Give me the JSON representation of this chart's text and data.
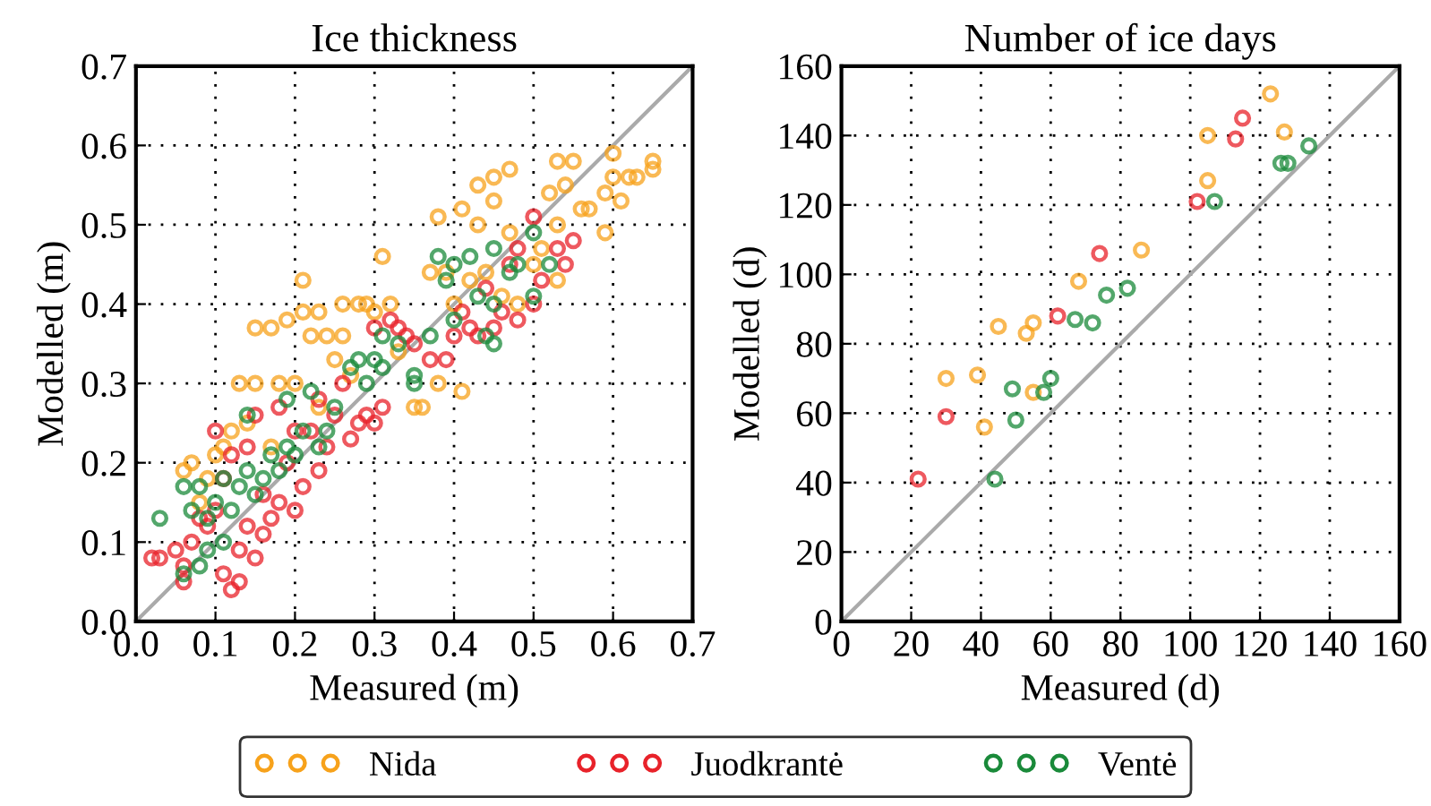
{
  "chart_data": [
    {
      "type": "scatter",
      "title": "Ice thickness",
      "xlabel": "Measured (m)",
      "ylabel": "Modelled (m)",
      "xlim": [
        0.0,
        0.7
      ],
      "ylim": [
        0.0,
        0.7
      ],
      "xticks": [
        {
          "value": 0.0,
          "label": "0.0"
        },
        0.1,
        0.2,
        0.3,
        0.4,
        0.5,
        0.6,
        0.7
      ],
      "yticks": [
        {
          "value": 0.0,
          "label": "0.0"
        },
        0.1,
        0.2,
        0.3,
        0.4,
        0.5,
        0.6,
        0.7
      ],
      "grid": true,
      "marker": "circle",
      "legend": "bottom",
      "series": [
        {
          "name": "Nida",
          "color": "#f7a21b",
          "x": [
            0.06,
            0.07,
            0.08,
            0.09,
            0.1,
            0.11,
            0.12,
            0.13,
            0.14,
            0.15,
            0.15,
            0.17,
            0.18,
            0.19,
            0.2,
            0.21,
            0.21,
            0.22,
            0.23,
            0.24,
            0.25,
            0.26,
            0.26,
            0.28,
            0.29,
            0.3,
            0.31,
            0.32,
            0.33,
            0.35,
            0.36,
            0.37,
            0.38,
            0.38,
            0.39,
            0.4,
            0.41,
            0.41,
            0.42,
            0.43,
            0.43,
            0.44,
            0.45,
            0.45,
            0.46,
            0.47,
            0.47,
            0.48,
            0.5,
            0.51,
            0.52,
            0.53,
            0.53,
            0.53,
            0.54,
            0.55,
            0.56,
            0.57,
            0.59,
            0.59,
            0.6,
            0.6,
            0.61,
            0.62,
            0.63,
            0.65,
            0.65,
            0.27,
            0.23,
            0.17
          ],
          "values": [
            0.19,
            0.2,
            0.15,
            0.18,
            0.21,
            0.22,
            0.24,
            0.3,
            0.25,
            0.3,
            0.37,
            0.37,
            0.3,
            0.38,
            0.3,
            0.43,
            0.39,
            0.36,
            0.39,
            0.36,
            0.33,
            0.4,
            0.36,
            0.4,
            0.4,
            0.39,
            0.46,
            0.4,
            0.34,
            0.27,
            0.27,
            0.44,
            0.3,
            0.51,
            0.44,
            0.4,
            0.29,
            0.52,
            0.43,
            0.55,
            0.5,
            0.44,
            0.56,
            0.53,
            0.41,
            0.57,
            0.49,
            0.4,
            0.45,
            0.47,
            0.54,
            0.5,
            0.43,
            0.58,
            0.55,
            0.58,
            0.52,
            0.52,
            0.49,
            0.54,
            0.59,
            0.56,
            0.53,
            0.56,
            0.56,
            0.57,
            0.58,
            0.31,
            0.27,
            0.22
          ]
        },
        {
          "name": "Juodkrantė",
          "color": "#e8222a",
          "x": [
            0.02,
            0.03,
            0.05,
            0.06,
            0.06,
            0.07,
            0.08,
            0.09,
            0.1,
            0.1,
            0.11,
            0.11,
            0.12,
            0.12,
            0.13,
            0.13,
            0.14,
            0.14,
            0.15,
            0.15,
            0.16,
            0.16,
            0.17,
            0.18,
            0.18,
            0.19,
            0.2,
            0.2,
            0.21,
            0.22,
            0.23,
            0.23,
            0.24,
            0.25,
            0.26,
            0.27,
            0.28,
            0.29,
            0.3,
            0.3,
            0.31,
            0.32,
            0.33,
            0.34,
            0.35,
            0.37,
            0.39,
            0.4,
            0.41,
            0.42,
            0.43,
            0.44,
            0.45,
            0.46,
            0.47,
            0.48,
            0.48,
            0.5,
            0.5,
            0.51,
            0.53,
            0.54,
            0.55
          ],
          "values": [
            0.08,
            0.08,
            0.09,
            0.05,
            0.07,
            0.1,
            0.13,
            0.12,
            0.24,
            0.14,
            0.18,
            0.06,
            0.04,
            0.21,
            0.05,
            0.09,
            0.12,
            0.22,
            0.08,
            0.26,
            0.16,
            0.11,
            0.13,
            0.15,
            0.27,
            0.2,
            0.14,
            0.24,
            0.17,
            0.24,
            0.19,
            0.28,
            0.22,
            0.26,
            0.3,
            0.23,
            0.25,
            0.26,
            0.37,
            0.25,
            0.27,
            0.38,
            0.37,
            0.36,
            0.35,
            0.33,
            0.33,
            0.36,
            0.39,
            0.37,
            0.36,
            0.42,
            0.37,
            0.39,
            0.45,
            0.38,
            0.47,
            0.4,
            0.51,
            0.43,
            0.47,
            0.45,
            0.48
          ]
        },
        {
          "name": "Ventė",
          "color": "#1a8a3a",
          "x": [
            0.03,
            0.06,
            0.06,
            0.07,
            0.08,
            0.08,
            0.09,
            0.09,
            0.1,
            0.11,
            0.11,
            0.12,
            0.13,
            0.14,
            0.14,
            0.15,
            0.16,
            0.17,
            0.18,
            0.19,
            0.19,
            0.2,
            0.21,
            0.22,
            0.23,
            0.24,
            0.25,
            0.27,
            0.28,
            0.29,
            0.3,
            0.31,
            0.31,
            0.33,
            0.35,
            0.35,
            0.37,
            0.38,
            0.39,
            0.4,
            0.4,
            0.42,
            0.43,
            0.44,
            0.45,
            0.45,
            0.45,
            0.47,
            0.48,
            0.5,
            0.5,
            0.52
          ],
          "values": [
            0.13,
            0.17,
            0.06,
            0.14,
            0.17,
            0.07,
            0.13,
            0.09,
            0.15,
            0.1,
            0.18,
            0.14,
            0.17,
            0.26,
            0.19,
            0.16,
            0.18,
            0.21,
            0.19,
            0.28,
            0.22,
            0.21,
            0.24,
            0.29,
            0.22,
            0.24,
            0.27,
            0.32,
            0.33,
            0.3,
            0.33,
            0.36,
            0.32,
            0.35,
            0.3,
            0.31,
            0.36,
            0.46,
            0.43,
            0.45,
            0.38,
            0.46,
            0.41,
            0.36,
            0.47,
            0.35,
            0.4,
            0.44,
            0.45,
            0.49,
            0.41,
            0.45
          ]
        },
        {
          "type": "line",
          "color": "#aaaaaa",
          "line_style": "solid",
          "marker": "none",
          "x": [
            0.0,
            0.7
          ],
          "values": [
            0.0,
            0.7
          ]
        }
      ]
    },
    {
      "type": "scatter",
      "title": "Number of ice days",
      "xlabel": "Measured (d)",
      "ylabel": "Modelled (d)",
      "xlim": [
        0,
        160
      ],
      "ylim": [
        0,
        160
      ],
      "xticks": [
        0,
        20,
        40,
        60,
        80,
        100,
        120,
        140,
        160
      ],
      "yticks": [
        0,
        20,
        40,
        60,
        80,
        100,
        120,
        140,
        160
      ],
      "grid": true,
      "marker": "circle",
      "legend": "bottom",
      "series": [
        {
          "name": "Nida",
          "color": "#f7a21b",
          "x": [
            30,
            39,
            41,
            45,
            53,
            55,
            55,
            68,
            86,
            105,
            105,
            123,
            127
          ],
          "values": [
            70,
            71,
            56,
            85,
            83,
            86,
            66,
            98,
            107,
            140,
            127,
            152,
            141
          ]
        },
        {
          "name": "Juodkrantė",
          "color": "#e8222a",
          "x": [
            22,
            30,
            62,
            74,
            102,
            113,
            115
          ],
          "values": [
            41,
            59,
            88,
            106,
            121,
            139,
            145
          ]
        },
        {
          "name": "Ventė",
          "color": "#1a8a3a",
          "x": [
            44,
            49,
            50,
            58,
            60,
            67,
            72,
            76,
            82,
            107,
            126,
            128,
            134
          ],
          "values": [
            41,
            67,
            58,
            66,
            70,
            87,
            86,
            94,
            96,
            121,
            132,
            132,
            137
          ]
        },
        {
          "type": "line",
          "color": "#aaaaaa",
          "line_style": "solid",
          "marker": "none",
          "x": [
            0,
            160
          ],
          "values": [
            0,
            160
          ]
        }
      ]
    }
  ]
}
